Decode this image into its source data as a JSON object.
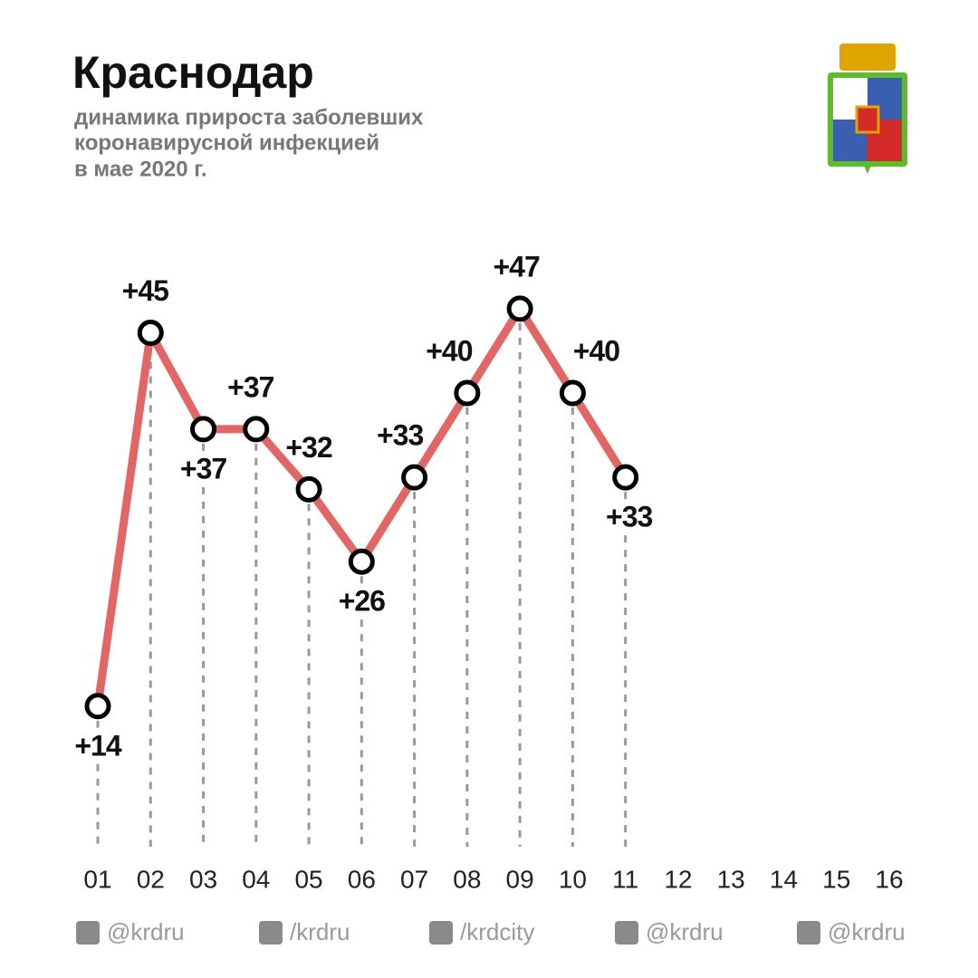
{
  "chart_data": {
    "type": "line",
    "title": "Краснодар",
    "subtitle": [
      "динамика прироста заболевших",
      "коронавирусной инфекцией",
      "в мае 2020 г."
    ],
    "categories": [
      "01",
      "02",
      "03",
      "04",
      "05",
      "06",
      "07",
      "08",
      "09",
      "10",
      "11",
      "12",
      "13",
      "14",
      "15",
      "16"
    ],
    "series": [
      {
        "color": "#e56565",
        "values": [
          14,
          45,
          37,
          37,
          32,
          26,
          33,
          40,
          47,
          40,
          33,
          null,
          null,
          null,
          null,
          null
        ],
        "value_labels": [
          "+14",
          "+45",
          "+37",
          "+37",
          "+32",
          "+26",
          "+33",
          "+40",
          "+47",
          "+40",
          "+33",
          null,
          null,
          null,
          null,
          null
        ]
      }
    ],
    "ylim": [
      0,
      50
    ],
    "footer": [
      "@krdru",
      "/krdru",
      "/krdcity",
      "@krdru",
      "@krdru"
    ]
  }
}
